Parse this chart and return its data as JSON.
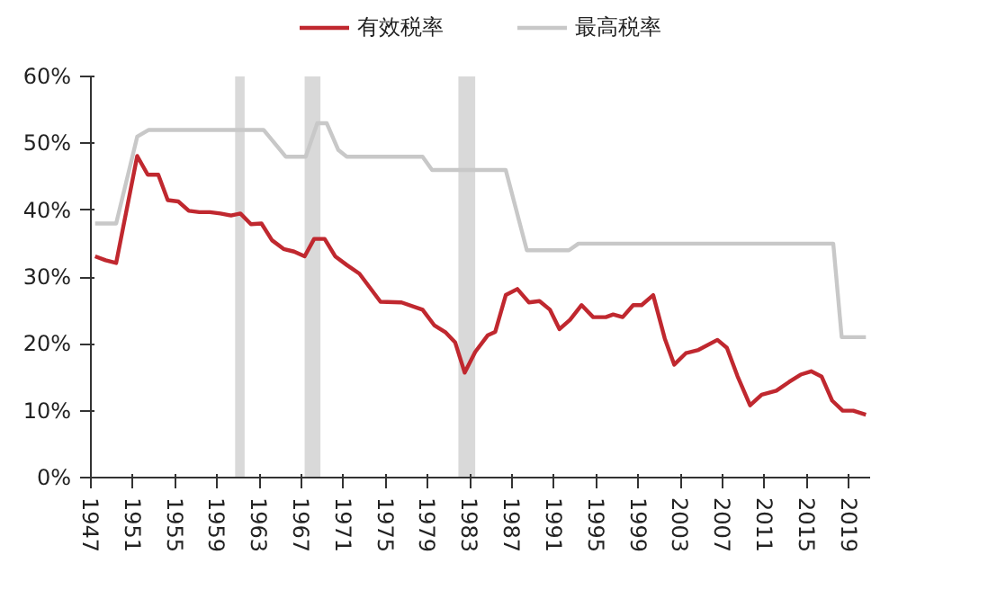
{
  "chart_data": {
    "type": "line",
    "legend": "top",
    "grid": false,
    "marker": "none",
    "line_style": "solid",
    "xlim": [
      1947,
      2021
    ],
    "xticks": [
      1947,
      1951,
      1955,
      1959,
      1963,
      1967,
      1971,
      1975,
      1979,
      1983,
      1987,
      1991,
      1995,
      1999,
      2003,
      2007,
      2011,
      2015,
      2019
    ],
    "ylim": [
      0,
      60
    ],
    "yticks": [
      {
        "value": 0,
        "label": "0%"
      },
      {
        "value": 10,
        "label": "10%"
      },
      {
        "value": 20,
        "label": "20%"
      },
      {
        "value": 30,
        "label": "30%"
      },
      {
        "value": 40,
        "label": "40%"
      },
      {
        "value": 50,
        "label": "50%"
      },
      {
        "value": 60,
        "label": "60%"
      }
    ],
    "bands": [
      {
        "axis": "x",
        "from": 1960.7,
        "to": 1961.6,
        "color": "#d9d9d9"
      },
      {
        "axis": "x",
        "from": 1967.3,
        "to": 1968.8,
        "color": "#d9d9d9"
      },
      {
        "axis": "x",
        "from": 1981.9,
        "to": 1983.5,
        "color": "#d9d9d9"
      }
    ],
    "series": [
      {
        "name": "有效税率",
        "color": "#c0282f",
        "x": [
          1947.4,
          1948.4,
          1949.4,
          1951.4,
          1952.4,
          1953.4,
          1954.3,
          1955.3,
          1956.3,
          1957.3,
          1958.3,
          1959.3,
          1960.3,
          1961.2,
          1962.2,
          1963.2,
          1964.2,
          1965.3,
          1966.3,
          1967.3,
          1968.2,
          1969.2,
          1970.2,
          1971.3,
          1972.5,
          1974.5,
          1976.5,
          1978.5,
          1979.6,
          1980.7,
          1981.6,
          1982.5,
          1983.5,
          1984.7,
          1985.4,
          1986.4,
          1987.5,
          1988.6,
          1989.6,
          1990.6,
          1991.5,
          1992.5,
          1993.6,
          1994.7,
          1995.9,
          1996.6,
          1997.5,
          1998.5,
          1999.3,
          2000.4,
          2001.5,
          2002.4,
          2003.5,
          2004.7,
          2006.5,
          2007.4,
          2008.4,
          2009.6,
          2010.7,
          2012.1,
          2013.3,
          2014.4,
          2015.4,
          2016.4,
          2017.4,
          2018.4,
          2019.4,
          2020.6
        ],
        "values": [
          33.1,
          32.5,
          32.1,
          48.1,
          45.3,
          45.3,
          41.5,
          41.3,
          39.9,
          39.7,
          39.7,
          39.5,
          39.2,
          39.5,
          37.9,
          38.0,
          35.5,
          34.2,
          33.8,
          33.1,
          35.7,
          35.7,
          33.1,
          31.8,
          30.5,
          26.3,
          26.2,
          25.1,
          22.8,
          21.7,
          20.2,
          15.7,
          18.8,
          21.3,
          21.8,
          27.3,
          28.2,
          26.2,
          26.4,
          25.1,
          22.2,
          23.6,
          25.8,
          24.0,
          24.0,
          24.4,
          24.0,
          25.8,
          25.8,
          27.3,
          20.8,
          16.9,
          18.6,
          19.1,
          20.6,
          19.4,
          15.2,
          10.8,
          12.4,
          13.0,
          14.3,
          15.4,
          15.9,
          15.1,
          11.5,
          10.0,
          10.0,
          9.4
        ]
      },
      {
        "name": "最高税率",
        "color": "#c8c8c8",
        "x": [
          1947.4,
          1949.4,
          1951.4,
          1952.5,
          1963.4,
          1965.5,
          1967.4,
          1968.5,
          1969.4,
          1970.5,
          1971.3,
          1978.5,
          1979.4,
          1986.4,
          1988.4,
          1992.4,
          1993.3,
          2017.5,
          2018.3,
          2020.6
        ],
        "values": [
          38,
          38,
          51,
          52,
          52,
          48,
          48,
          53,
          53,
          49,
          48,
          48,
          46,
          46,
          34,
          34,
          35,
          35,
          21,
          21
        ]
      }
    ]
  }
}
